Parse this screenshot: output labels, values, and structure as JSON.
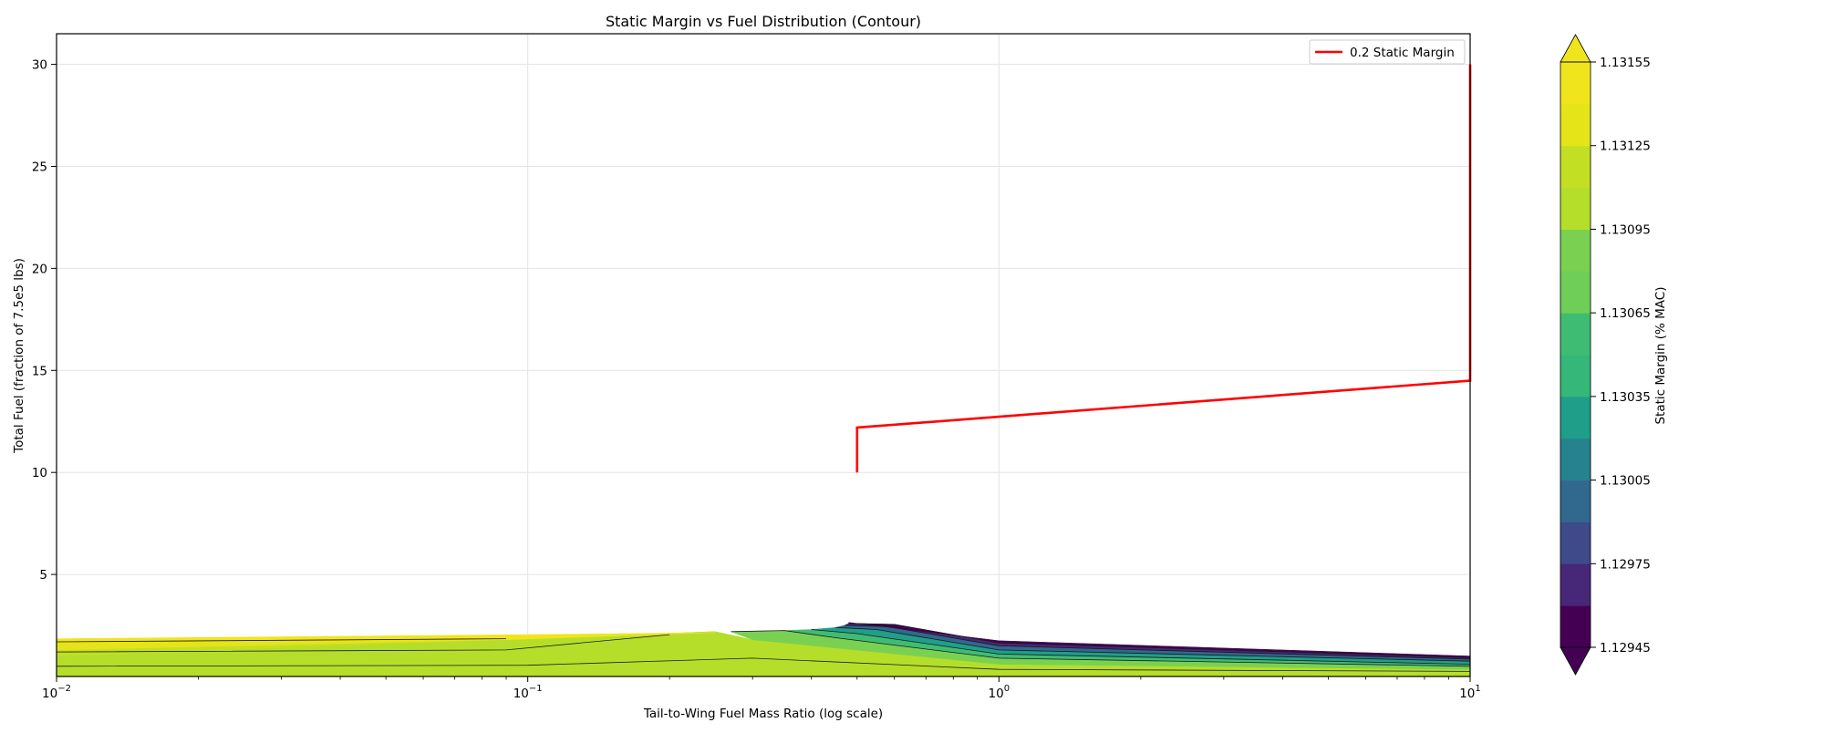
{
  "chart_data": {
    "type": "contourf",
    "title": "Static Margin vs Fuel Distribution (Contour)",
    "xlabel": "Tail-to-Wing Fuel Mass Ratio (log scale)",
    "ylabel": "Total Fuel (fraction of 7.5e5 lbs)",
    "x_scale": "log",
    "xlim": [
      0.01,
      10
    ],
    "ylim": [
      0,
      31.5
    ],
    "grid": true,
    "x_ticks": [
      {
        "value": 0.01,
        "base": "10",
        "exp": "−2"
      },
      {
        "value": 0.1,
        "base": "10",
        "exp": "−1"
      },
      {
        "value": 1,
        "base": "10",
        "exp": "0"
      },
      {
        "value": 10,
        "base": "10",
        "exp": "1"
      }
    ],
    "y_ticks": [
      5,
      10,
      15,
      20,
      25,
      30
    ],
    "y_tick_labels": [
      "5",
      "10",
      "15",
      "20",
      "25",
      "30"
    ],
    "legend": {
      "placement": "upper right",
      "entries": [
        {
          "label": "0.2 Static Margin",
          "color": "#ff0000"
        }
      ]
    },
    "reference_line": {
      "name": "0.2 Static Margin",
      "color": "#ff0000",
      "points": [
        [
          0.5,
          10.0
        ],
        [
          0.5,
          12.2
        ],
        [
          10,
          14.5
        ],
        [
          10,
          30.0
        ]
      ]
    },
    "contour_regions": [
      {
        "level_index": 10,
        "points": [
          [
            0.01,
            0.0
          ],
          [
            10,
            0.0
          ],
          [
            10,
            0.35
          ],
          [
            1.0,
            0.6
          ],
          [
            0.3,
            1.8
          ],
          [
            0.25,
            2.2
          ],
          [
            0.01,
            1.0
          ]
        ]
      },
      {
        "level_index": 11,
        "points": [
          [
            0.01,
            1.0
          ],
          [
            0.25,
            2.2
          ],
          [
            0.09,
            1.8
          ],
          [
            0.01,
            1.3
          ]
        ]
      },
      {
        "level_index": 12,
        "points": [
          [
            0.01,
            1.3
          ],
          [
            0.09,
            1.8
          ],
          [
            0.01,
            1.7
          ]
        ]
      },
      {
        "level_index": 13,
        "points": [
          [
            0.01,
            1.7
          ],
          [
            0.09,
            1.8
          ],
          [
            0.25,
            2.15
          ],
          [
            0.1,
            2.05
          ],
          [
            0.01,
            1.85
          ]
        ]
      },
      {
        "level_index": 9,
        "points": [
          [
            0.3,
            1.8
          ],
          [
            1.0,
            0.6
          ],
          [
            10,
            0.35
          ],
          [
            10,
            0.5
          ],
          [
            1.0,
            0.9
          ],
          [
            0.45,
            1.9
          ],
          [
            0.35,
            2.25
          ],
          [
            0.27,
            2.2
          ]
        ]
      },
      {
        "level_index": 7,
        "points": [
          [
            0.45,
            1.9
          ],
          [
            1.0,
            0.9
          ],
          [
            10,
            0.5
          ],
          [
            10,
            0.6
          ],
          [
            1.0,
            1.1
          ],
          [
            0.5,
            2.1
          ],
          [
            0.4,
            2.3
          ],
          [
            0.35,
            2.25
          ]
        ]
      },
      {
        "level_index": 5,
        "points": [
          [
            0.5,
            2.1
          ],
          [
            1.0,
            1.1
          ],
          [
            10,
            0.6
          ],
          [
            10,
            0.75
          ],
          [
            1.0,
            1.3
          ],
          [
            0.55,
            2.3
          ],
          [
            0.45,
            2.4
          ],
          [
            0.4,
            2.3
          ]
        ]
      },
      {
        "level_index": 3,
        "points": [
          [
            0.55,
            2.3
          ],
          [
            1.0,
            1.3
          ],
          [
            10,
            0.75
          ],
          [
            10,
            0.85
          ],
          [
            1.0,
            1.5
          ],
          [
            0.58,
            2.45
          ],
          [
            0.47,
            2.5
          ],
          [
            0.45,
            2.4
          ]
        ]
      },
      {
        "level_index": 1,
        "points": [
          [
            0.58,
            2.45
          ],
          [
            1.0,
            1.5
          ],
          [
            10,
            0.85
          ],
          [
            10,
            0.92
          ],
          [
            1.0,
            1.65
          ],
          [
            0.6,
            2.55
          ],
          [
            0.48,
            2.6
          ],
          [
            0.47,
            2.5
          ]
        ]
      },
      {
        "level_index": 0,
        "points": [
          [
            0.6,
            2.55
          ],
          [
            1.0,
            1.65
          ],
          [
            10,
            0.92
          ],
          [
            10,
            1.0
          ],
          [
            1.0,
            1.75
          ],
          [
            0.48,
            2.65
          ],
          [
            0.48,
            2.6
          ]
        ]
      }
    ],
    "contour_lines": [
      [
        [
          0.01,
          0.5
        ],
        [
          0.1,
          0.55
        ],
        [
          0.3,
          0.9
        ],
        [
          1.0,
          0.35
        ],
        [
          10,
          0.25
        ]
      ],
      [
        [
          0.01,
          1.2
        ],
        [
          0.09,
          1.3
        ],
        [
          0.2,
          2.05
        ]
      ],
      [
        [
          0.01,
          1.7
        ],
        [
          0.09,
          1.85
        ]
      ],
      [
        [
          0.27,
          2.2
        ],
        [
          0.35,
          2.25
        ],
        [
          0.45,
          1.9
        ],
        [
          1.0,
          0.9
        ],
        [
          10,
          0.5
        ]
      ],
      [
        [
          0.4,
          2.3
        ],
        [
          0.5,
          2.1
        ],
        [
          1.0,
          1.1
        ],
        [
          10,
          0.6
        ]
      ],
      [
        [
          0.45,
          2.4
        ],
        [
          0.55,
          2.3
        ],
        [
          1.0,
          1.3
        ],
        [
          10,
          0.75
        ]
      ],
      [
        [
          0.47,
          2.5
        ],
        [
          0.58,
          2.45
        ],
        [
          1.0,
          1.5
        ],
        [
          10,
          0.85
        ]
      ],
      [
        [
          0.48,
          2.6
        ],
        [
          0.6,
          2.55
        ],
        [
          1.0,
          1.65
        ],
        [
          10,
          0.92
        ]
      ]
    ],
    "colorbar": {
      "label": "Static Margin (% MAC)",
      "extend": "both",
      "colors": [
        "#440154",
        "#472777",
        "#3e4a89",
        "#31688e",
        "#26828e",
        "#1f9e89",
        "#35b779",
        "#3fbc73",
        "#6ece58",
        "#7ad151",
        "#b5de2b",
        "#c2df23",
        "#e5e419",
        "#f0e51c"
      ],
      "tick_labels": [
        "1.12945",
        "1.12975",
        "1.13005",
        "1.13035",
        "1.13065",
        "1.13095",
        "1.13125",
        "1.13155"
      ],
      "min_color": "#440154",
      "max_color": "#f0e51c"
    }
  }
}
